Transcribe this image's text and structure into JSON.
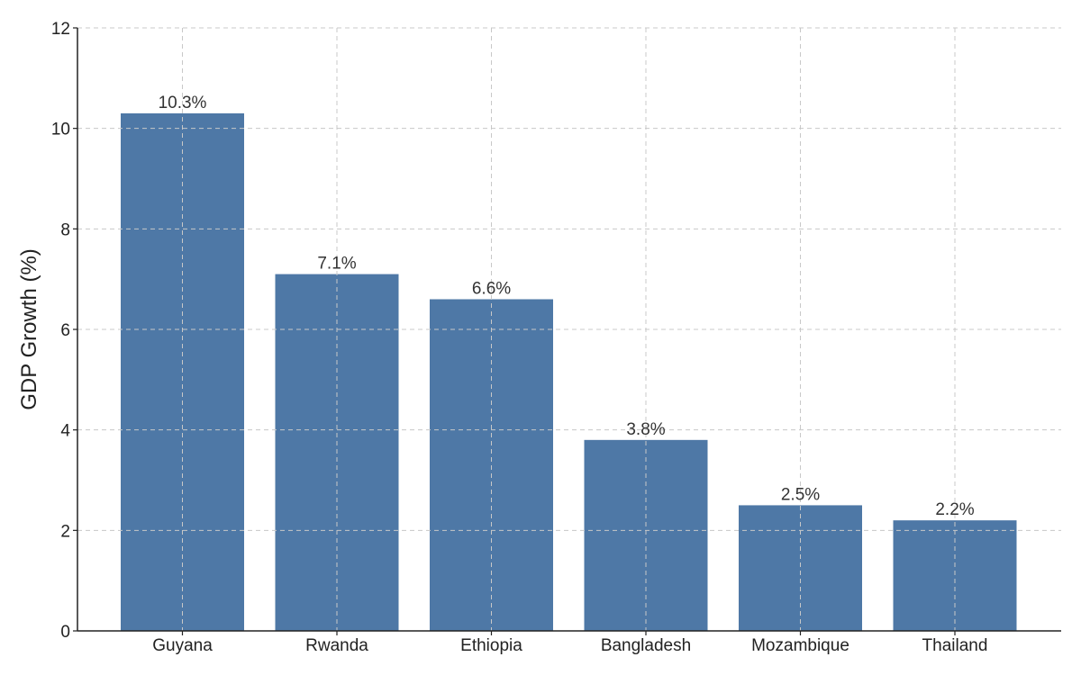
{
  "chart_data": {
    "type": "bar",
    "title": "",
    "xlabel": "",
    "ylabel": "GDP Growth (%)",
    "categories": [
      "Guyana",
      "Rwanda",
      "Ethiopia",
      "Bangladesh",
      "Mozambique",
      "Thailand"
    ],
    "values": [
      10.3,
      7.1,
      6.6,
      3.8,
      2.5,
      2.2
    ],
    "data_labels": [
      "10.3%",
      "7.1%",
      "6.6%",
      "3.8%",
      "2.5%",
      "2.2%"
    ],
    "ylim": [
      0,
      12
    ],
    "yticks": [
      0,
      2,
      4,
      6,
      8,
      10,
      12
    ],
    "grid": true,
    "grid_style": "dashed",
    "bar_color": "#4e78a6",
    "legend": "none"
  }
}
